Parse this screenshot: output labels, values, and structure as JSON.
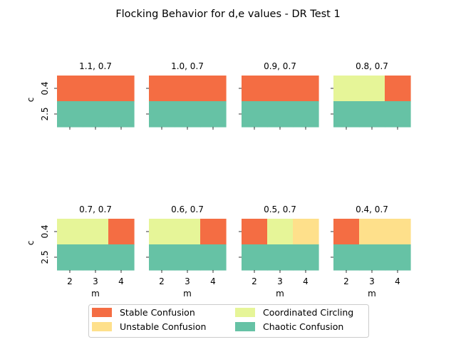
{
  "chart_data": {
    "type": "heatmap",
    "title": "Flocking Behavior for d,e values - DR Test 1",
    "xlabel": "m",
    "ylabel": "c",
    "x_ticks": [
      "2",
      "3",
      "4"
    ],
    "y_ticks": [
      "0.4",
      "2.5"
    ],
    "legend": {
      "placement": "bottom-center",
      "entries": [
        {
          "name": "Stable Confusion",
          "color": "#f46d43"
        },
        {
          "name": "Unstable Confusion",
          "color": "#fee08b"
        },
        {
          "name": "Coordinated Circling",
          "color": "#e6f598"
        },
        {
          "name": "Chaotic Confusion",
          "color": "#66c2a5"
        }
      ]
    },
    "panels": [
      {
        "title": "1.1, 0.7",
        "rows": [
          [
            "Stable Confusion",
            "Stable Confusion",
            "Stable Confusion"
          ],
          [
            "Chaotic Confusion",
            "Chaotic Confusion",
            "Chaotic Confusion"
          ]
        ]
      },
      {
        "title": "1.0, 0.7",
        "rows": [
          [
            "Stable Confusion",
            "Stable Confusion",
            "Stable Confusion"
          ],
          [
            "Chaotic Confusion",
            "Chaotic Confusion",
            "Chaotic Confusion"
          ]
        ]
      },
      {
        "title": "0.9, 0.7",
        "rows": [
          [
            "Stable Confusion",
            "Stable Confusion",
            "Stable Confusion"
          ],
          [
            "Chaotic Confusion",
            "Chaotic Confusion",
            "Chaotic Confusion"
          ]
        ]
      },
      {
        "title": "0.8, 0.7",
        "rows": [
          [
            "Coordinated Circling",
            "Coordinated Circling",
            "Stable Confusion"
          ],
          [
            "Chaotic Confusion",
            "Chaotic Confusion",
            "Chaotic Confusion"
          ]
        ]
      },
      {
        "title": "0.7, 0.7",
        "rows": [
          [
            "Coordinated Circling",
            "Coordinated Circling",
            "Stable Confusion"
          ],
          [
            "Chaotic Confusion",
            "Chaotic Confusion",
            "Chaotic Confusion"
          ]
        ]
      },
      {
        "title": "0.6, 0.7",
        "rows": [
          [
            "Coordinated Circling",
            "Coordinated Circling",
            "Stable Confusion"
          ],
          [
            "Chaotic Confusion",
            "Chaotic Confusion",
            "Chaotic Confusion"
          ]
        ]
      },
      {
        "title": "0.5, 0.7",
        "rows": [
          [
            "Stable Confusion",
            "Coordinated Circling",
            "Unstable Confusion"
          ],
          [
            "Chaotic Confusion",
            "Chaotic Confusion",
            "Chaotic Confusion"
          ]
        ]
      },
      {
        "title": "0.4, 0.7",
        "rows": [
          [
            "Stable Confusion",
            "Unstable Confusion",
            "Unstable Confusion"
          ],
          [
            "Chaotic Confusion",
            "Chaotic Confusion",
            "Chaotic Confusion"
          ]
        ]
      }
    ]
  }
}
